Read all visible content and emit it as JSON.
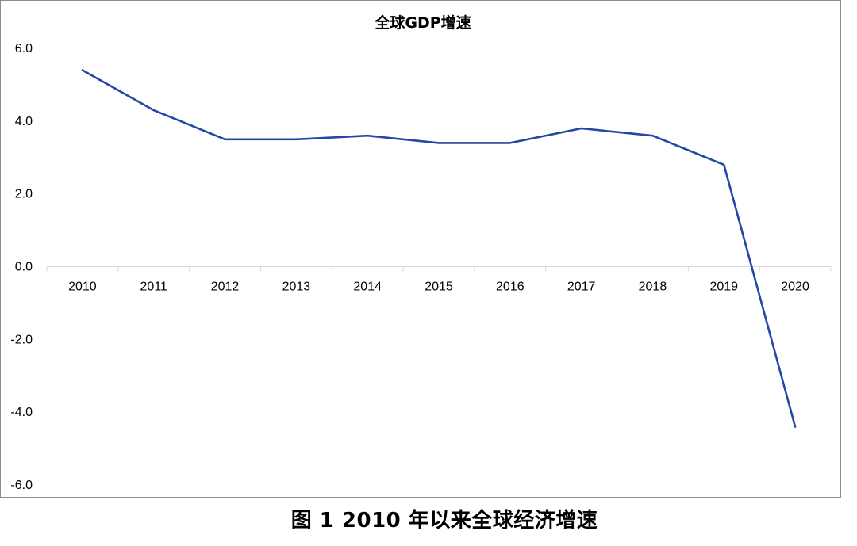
{
  "chart_data": {
    "type": "line",
    "title": "全球GDP增速",
    "categories": [
      "2010",
      "2011",
      "2012",
      "2013",
      "2014",
      "2015",
      "2016",
      "2017",
      "2018",
      "2019",
      "2020"
    ],
    "series": [
      {
        "values": [
          5.4,
          4.3,
          3.5,
          3.5,
          3.6,
          3.4,
          3.4,
          3.8,
          3.6,
          2.8,
          -4.4
        ]
      }
    ],
    "ylim": [
      -6.0,
      6.0
    ],
    "yticks": [
      "6.0",
      "4.0",
      "2.0",
      "0.0",
      "-2.0",
      "-4.0",
      "-6.0"
    ],
    "xlabel": "",
    "ylabel": "",
    "grid": false,
    "legend": "none",
    "line_color": "#2447a8"
  },
  "caption": "图 1 2010 年以来全球经济增速"
}
